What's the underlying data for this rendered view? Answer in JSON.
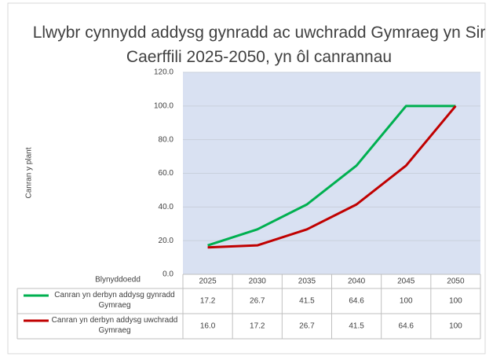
{
  "chart_data": {
    "type": "line",
    "title": "Llwybr cynnydd addysg gynradd ac uwchradd Gymraeg yn Sir Caerffili 2025-2050, yn ôl canrannau",
    "y_label": "Canran y plant",
    "x_label": "Blynyddoedd",
    "categories": [
      "2025",
      "2030",
      "2035",
      "2040",
      "2045",
      "2050"
    ],
    "series": [
      {
        "name": "Canran yn derbyn addysg gynradd Gymraeg",
        "color": "#00b050",
        "values": [
          17.2,
          26.7,
          41.5,
          64.6,
          100,
          100
        ]
      },
      {
        "name": "Canran yn derbyn addysg uwchradd Gymraeg",
        "color": "#c00000",
        "values": [
          16,
          17.2,
          26.7,
          41.5,
          64.6,
          100
        ],
        "value_labels": [
          "16.0",
          "17.2",
          "26.7",
          "41.5",
          "64.6",
          "100"
        ]
      }
    ],
    "ylim": [
      0,
      120
    ],
    "yticks": [
      {
        "value": 0,
        "label": "0.0"
      },
      {
        "value": 20,
        "label": "20.0"
      },
      {
        "value": 40,
        "label": "40.0"
      },
      {
        "value": 60,
        "label": "60.0"
      },
      {
        "value": 80,
        "label": "80.0"
      },
      {
        "value": 100,
        "label": "100.0"
      },
      {
        "value": 120,
        "label": "120.0"
      }
    ],
    "grid": true,
    "plot_background": "#d9e1f2"
  }
}
